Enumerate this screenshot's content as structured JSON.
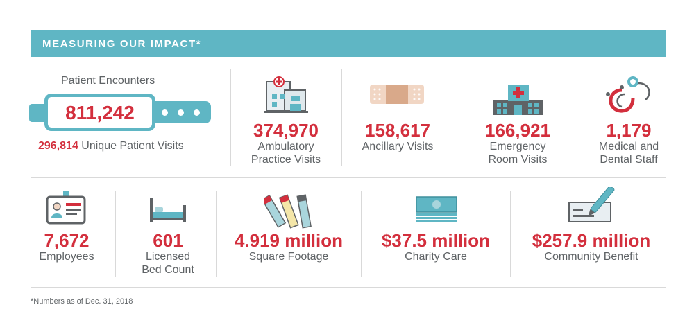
{
  "header": {
    "title": "MEASURING OUR IMPACT*"
  },
  "patient_encounters": {
    "label": "Patient Encounters",
    "value": "811,242",
    "unique_value": "296,814",
    "unique_label": "Unique Patient Visits"
  },
  "row1": [
    {
      "value": "374,970",
      "line1": "Ambulatory",
      "line2": "Practice Visits",
      "icon": "hospital-icon"
    },
    {
      "value": "158,617",
      "line1": "Ancillary Visits",
      "line2": "",
      "icon": "bandage-icon"
    },
    {
      "value": "166,921",
      "line1": "Emergency",
      "line2": "Room Visits",
      "icon": "emergency-room-icon"
    },
    {
      "value": "1,179",
      "line1": "Medical and",
      "line2": "Dental Staff",
      "icon": "stethoscope-icon"
    }
  ],
  "row2": [
    {
      "value": "7,672",
      "line1": "Employees",
      "line2": "",
      "icon": "id-badge-icon"
    },
    {
      "value": "601",
      "line1": "Licensed",
      "line2": "Bed Count",
      "icon": "bed-icon"
    },
    {
      "value": "4.919 million",
      "line1": "Square Footage",
      "line2": "",
      "icon": "tape-measure-icon"
    },
    {
      "value": "$37.5 million",
      "line1": "Charity Care",
      "line2": "",
      "icon": "money-stack-icon"
    },
    {
      "value": "$257.9 million",
      "line1": "Community Benefit",
      "line2": "",
      "icon": "check-pen-icon"
    }
  ],
  "footnote": "*Numbers as of Dec. 31, 2018",
  "colors": {
    "accent": "#5fb6c4",
    "number": "#d32f3d",
    "text": "#5f6366"
  }
}
